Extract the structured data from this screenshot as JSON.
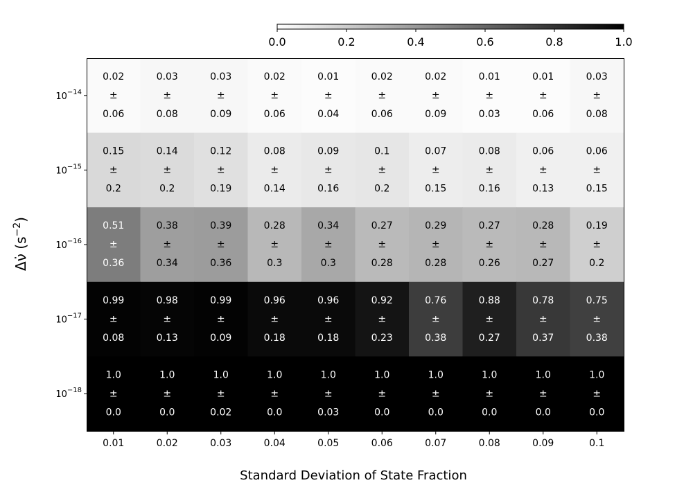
{
  "chart_data": {
    "type": "heatmap",
    "xlabel": "Standard Deviation of State Fraction",
    "ylabel_main": "Δν̇ (s",
    "ylabel_exp": "−2",
    "ylabel_close": ")",
    "x_ticks": [
      "0.01",
      "0.02",
      "0.03",
      "0.04",
      "0.05",
      "0.06",
      "0.07",
      "0.08",
      "0.09",
      "0.1"
    ],
    "y_rows": [
      {
        "base": "10",
        "exp": "−14"
      },
      {
        "base": "10",
        "exp": "−15"
      },
      {
        "base": "10",
        "exp": "−16"
      },
      {
        "base": "10",
        "exp": "−17"
      },
      {
        "base": "10",
        "exp": "−18"
      }
    ],
    "pm_symbol": "±",
    "values": [
      [
        "0.02",
        "0.03",
        "0.03",
        "0.02",
        "0.01",
        "0.02",
        "0.02",
        "0.01",
        "0.01",
        "0.03"
      ],
      [
        "0.15",
        "0.14",
        "0.12",
        "0.08",
        "0.09",
        "0.1",
        "0.07",
        "0.08",
        "0.06",
        "0.06"
      ],
      [
        "0.51",
        "0.38",
        "0.39",
        "0.28",
        "0.34",
        "0.27",
        "0.29",
        "0.27",
        "0.28",
        "0.19"
      ],
      [
        "0.99",
        "0.98",
        "0.99",
        "0.96",
        "0.96",
        "0.92",
        "0.76",
        "0.88",
        "0.78",
        "0.75"
      ],
      [
        "1.0",
        "1.0",
        "1.0",
        "1.0",
        "1.0",
        "1.0",
        "1.0",
        "1.0",
        "1.0",
        "1.0"
      ]
    ],
    "errors": [
      [
        "0.06",
        "0.08",
        "0.09",
        "0.06",
        "0.04",
        "0.06",
        "0.09",
        "0.03",
        "0.06",
        "0.08"
      ],
      [
        "0.2",
        "0.2",
        "0.19",
        "0.14",
        "0.16",
        "0.2",
        "0.15",
        "0.16",
        "0.13",
        "0.15"
      ],
      [
        "0.36",
        "0.34",
        "0.36",
        "0.3",
        "0.3",
        "0.28",
        "0.28",
        "0.26",
        "0.27",
        "0.2"
      ],
      [
        "0.08",
        "0.13",
        "0.09",
        "0.18",
        "0.18",
        "0.23",
        "0.38",
        "0.27",
        "0.37",
        "0.38"
      ],
      [
        "0.0",
        "0.0",
        "0.02",
        "0.0",
        "0.03",
        "0.0",
        "0.0",
        "0.0",
        "0.0",
        "0.0"
      ]
    ],
    "colorbar": {
      "range": [
        0.0,
        1.0
      ],
      "ticks": [
        "0.0",
        "0.2",
        "0.4",
        "0.6",
        "0.8",
        "1.0"
      ],
      "colormap": "greys",
      "low_color": "#ffffff",
      "high_color": "#000000"
    }
  }
}
